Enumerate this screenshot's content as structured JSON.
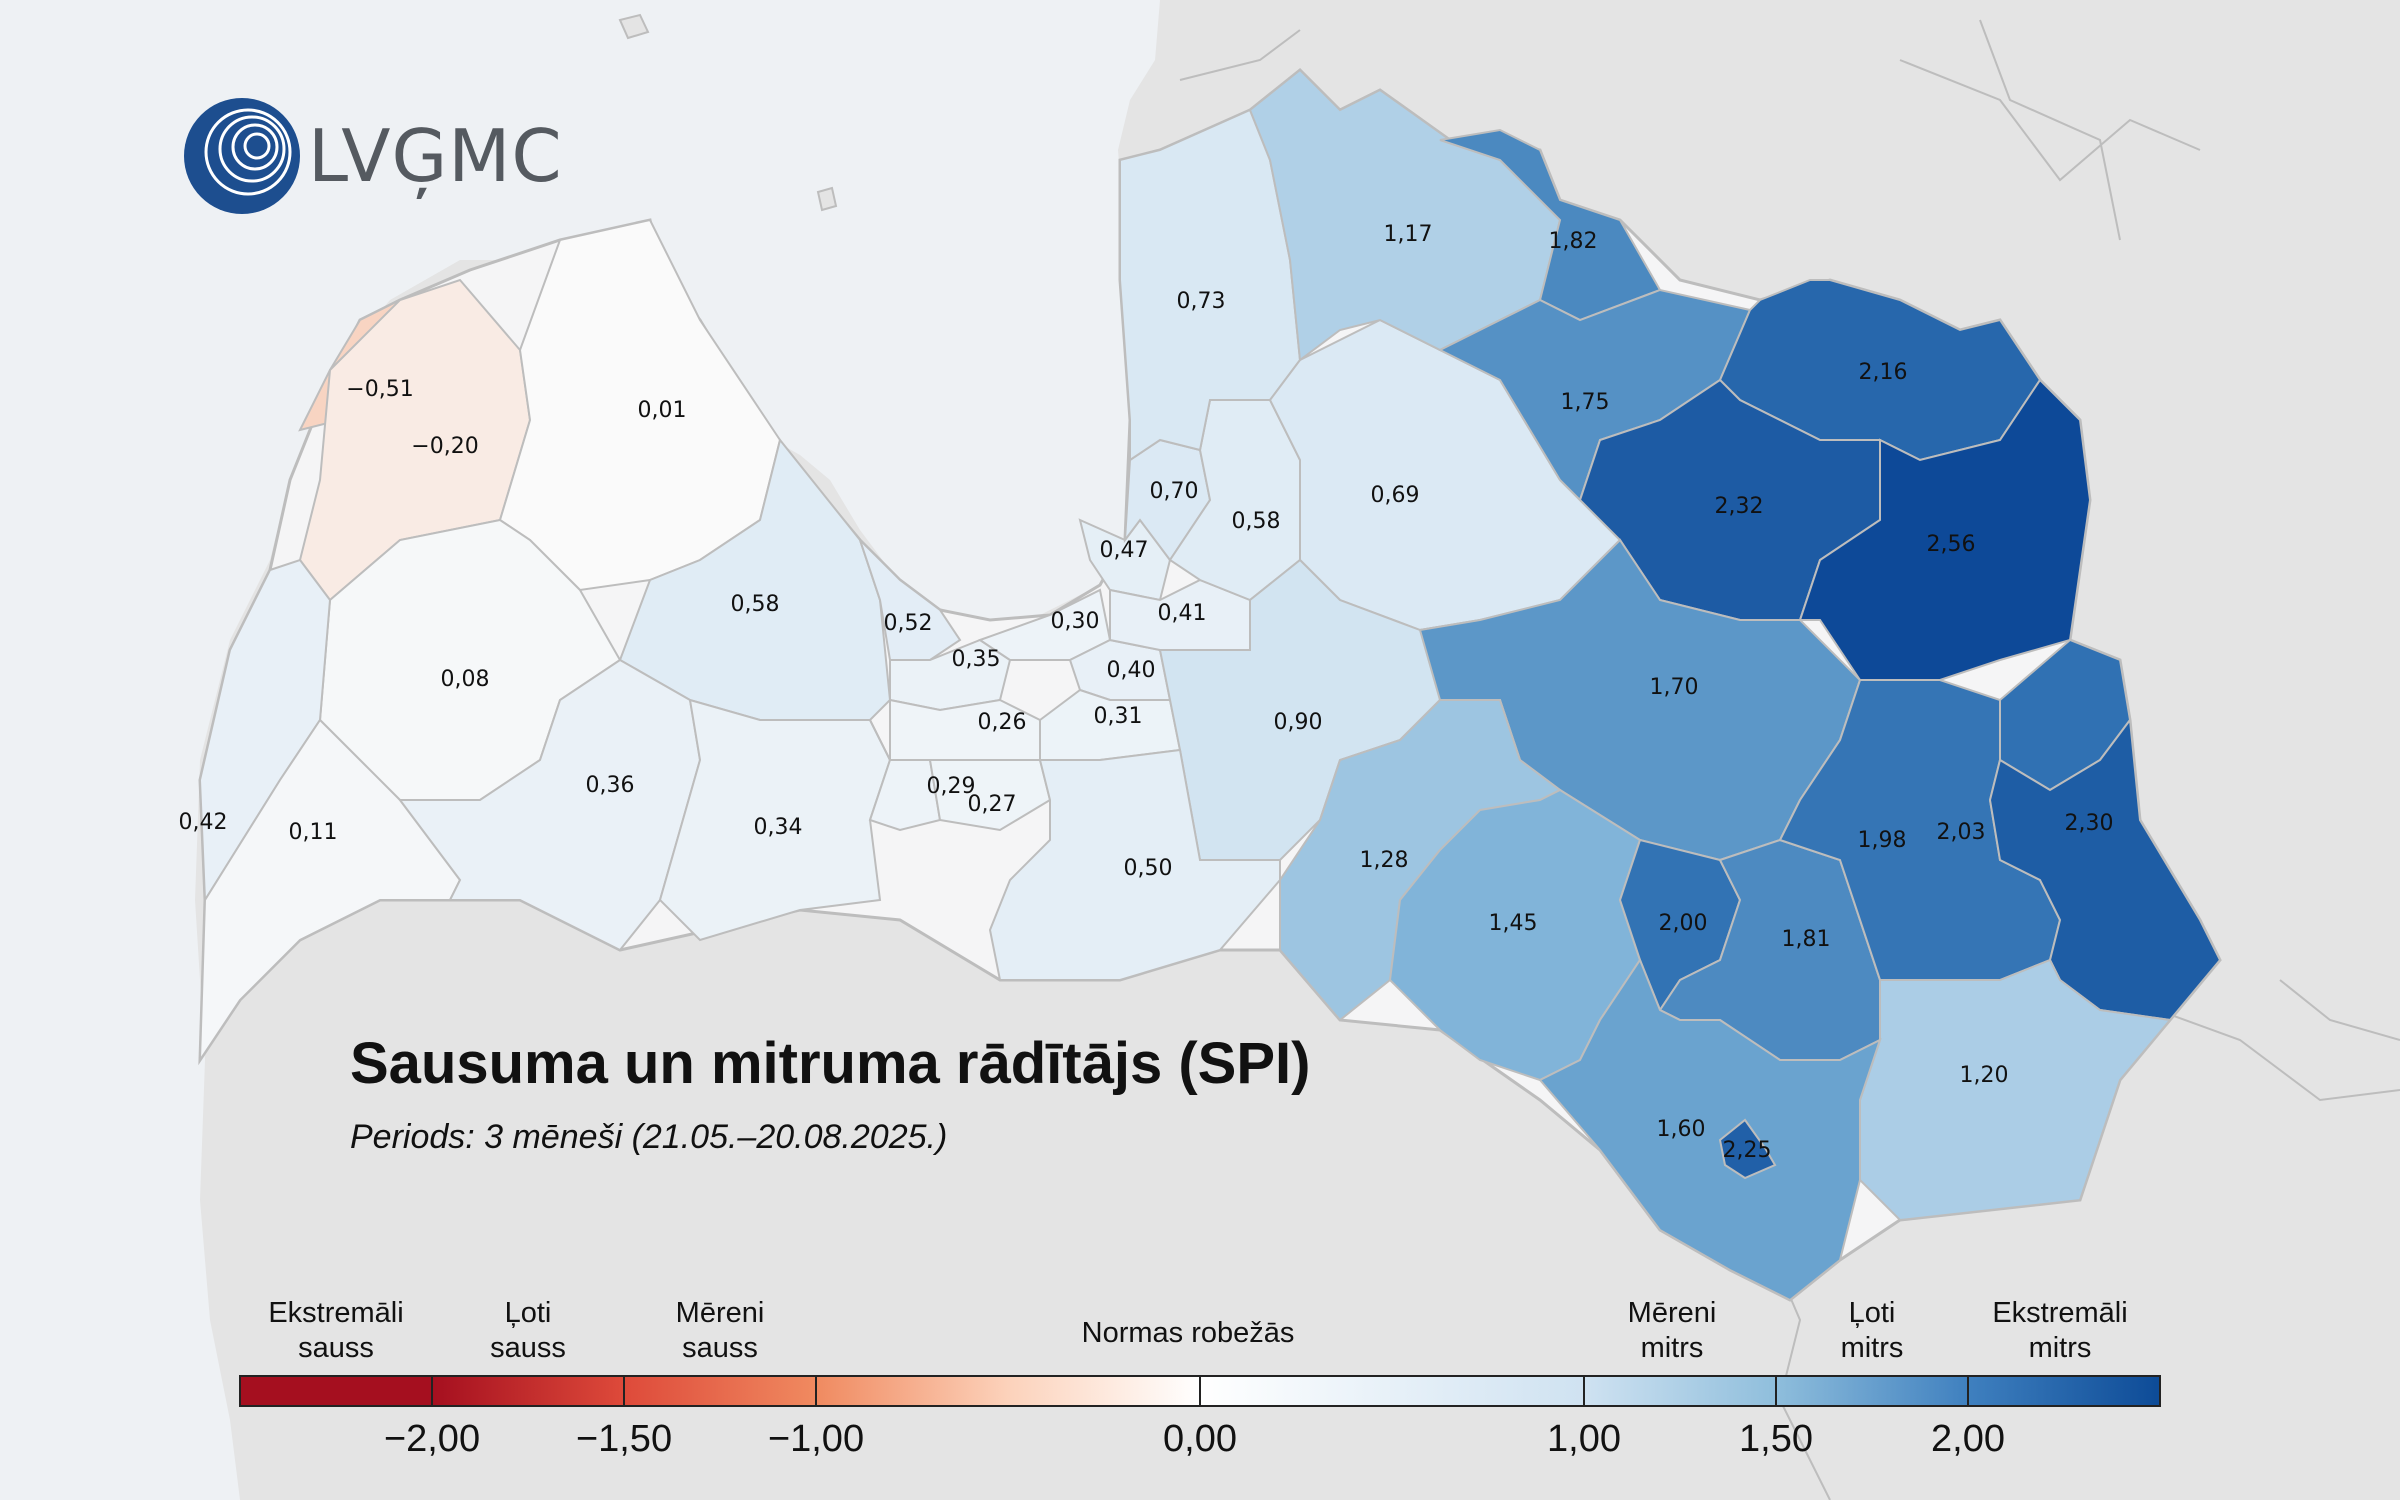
{
  "logo": {
    "text": "LVĢMC"
  },
  "title": "Sausuma un mitruma rādītājs (SPI)",
  "subtitle": "Periods: 3 mēneši (21.05.–20.08.2025.)",
  "legend": {
    "categories": [
      {
        "key": "extreme-dry",
        "lines": [
          "Ekstremāli",
          "sauss"
        ]
      },
      {
        "key": "very-dry",
        "lines": [
          "Ļoti",
          "sauss"
        ]
      },
      {
        "key": "moderate-dry",
        "lines": [
          "Mēreni",
          "sauss"
        ]
      },
      {
        "key": "normal",
        "lines": [
          "Normas robežās"
        ]
      },
      {
        "key": "moderate-wet",
        "lines": [
          "Mēreni",
          "mitrs"
        ]
      },
      {
        "key": "very-wet",
        "lines": [
          "Ļoti",
          "mitrs"
        ]
      },
      {
        "key": "extreme-wet",
        "lines": [
          "Ekstremāli",
          "mitrs"
        ]
      }
    ],
    "ticks": [
      "−2,00",
      "−1,50",
      "−1,00",
      "0,00",
      "1,00",
      "1,50",
      "2,00"
    ],
    "colors": {
      "extreme-dry": "#a50f1f",
      "very-dry": "#de4a3a",
      "moderate-dry": "#f6b08d",
      "normal-dry": "#fff0e6",
      "normal-wet": "#e6f0f8",
      "moderate-wet": "#a7cde3",
      "very-wet": "#4c8fc6",
      "extreme-wet": "#0d4b97"
    }
  },
  "regions": [
    {
      "name": "municipality-a",
      "value": "−0,51",
      "spi": -0.51
    },
    {
      "name": "municipality-b",
      "value": "−0,20",
      "spi": -0.2
    },
    {
      "name": "municipality-c",
      "value": "0,01",
      "spi": 0.01
    },
    {
      "name": "municipality-d",
      "value": "0,08",
      "spi": 0.08
    },
    {
      "name": "municipality-e",
      "value": "0,58",
      "spi": 0.58
    },
    {
      "name": "municipality-f",
      "value": "0,42",
      "spi": 0.42
    },
    {
      "name": "municipality-g",
      "value": "0,11",
      "spi": 0.11
    },
    {
      "name": "municipality-h",
      "value": "0,36",
      "spi": 0.36
    },
    {
      "name": "municipality-i",
      "value": "0,34",
      "spi": 0.34
    },
    {
      "name": "municipality-j",
      "value": "0,52",
      "spi": 0.52
    },
    {
      "name": "municipality-k",
      "value": "0,35",
      "spi": 0.35
    },
    {
      "name": "municipality-l",
      "value": "0,26",
      "spi": 0.26
    },
    {
      "name": "municipality-m",
      "value": "0,29",
      "spi": 0.29
    },
    {
      "name": "municipality-n",
      "value": "0,27",
      "spi": 0.27
    },
    {
      "name": "municipality-o",
      "value": "0,30",
      "spi": 0.3
    },
    {
      "name": "municipality-p",
      "value": "0,40",
      "spi": 0.4
    },
    {
      "name": "municipality-q",
      "value": "0,31",
      "spi": 0.31
    },
    {
      "name": "municipality-r",
      "value": "0,47",
      "spi": 0.47
    },
    {
      "name": "municipality-s",
      "value": "0,70",
      "spi": 0.7
    },
    {
      "name": "municipality-t",
      "value": "0,41",
      "spi": 0.41
    },
    {
      "name": "municipality-u",
      "value": "0,58",
      "spi": 0.58
    },
    {
      "name": "municipality-v",
      "value": "0,73",
      "spi": 0.73
    },
    {
      "name": "municipality-w",
      "value": "0,69",
      "spi": 0.69
    },
    {
      "name": "municipality-x",
      "value": "0,90",
      "spi": 0.9
    },
    {
      "name": "municipality-y",
      "value": "0,50",
      "spi": 0.5
    },
    {
      "name": "municipality-z",
      "value": "1,17",
      "spi": 1.17
    },
    {
      "name": "municipality-aa",
      "value": "1,82",
      "spi": 1.82
    },
    {
      "name": "municipality-ab",
      "value": "1,75",
      "spi": 1.75
    },
    {
      "name": "municipality-ac",
      "value": "2,16",
      "spi": 2.16
    },
    {
      "name": "municipality-ad",
      "value": "2,32",
      "spi": 2.32
    },
    {
      "name": "municipality-ae",
      "value": "2,56",
      "spi": 2.56
    },
    {
      "name": "municipality-af",
      "value": "1,70",
      "spi": 1.7
    },
    {
      "name": "municipality-ag",
      "value": "1,28",
      "spi": 1.28
    },
    {
      "name": "municipality-ah",
      "value": "1,45",
      "spi": 1.45
    },
    {
      "name": "municipality-ai",
      "value": "2,00",
      "spi": 2.0
    },
    {
      "name": "municipality-aj",
      "value": "1,81",
      "spi": 1.81
    },
    {
      "name": "municipality-ak",
      "value": "1,98",
      "spi": 1.98
    },
    {
      "name": "municipality-al",
      "value": "2,03",
      "spi": 2.03
    },
    {
      "name": "municipality-am",
      "value": "2,30",
      "spi": 2.3
    },
    {
      "name": "municipality-an",
      "value": "1,20",
      "spi": 1.2
    },
    {
      "name": "municipality-ao",
      "value": "1,60",
      "spi": 1.6
    },
    {
      "name": "municipality-ap",
      "value": "2,25",
      "spi": 2.25
    }
  ]
}
